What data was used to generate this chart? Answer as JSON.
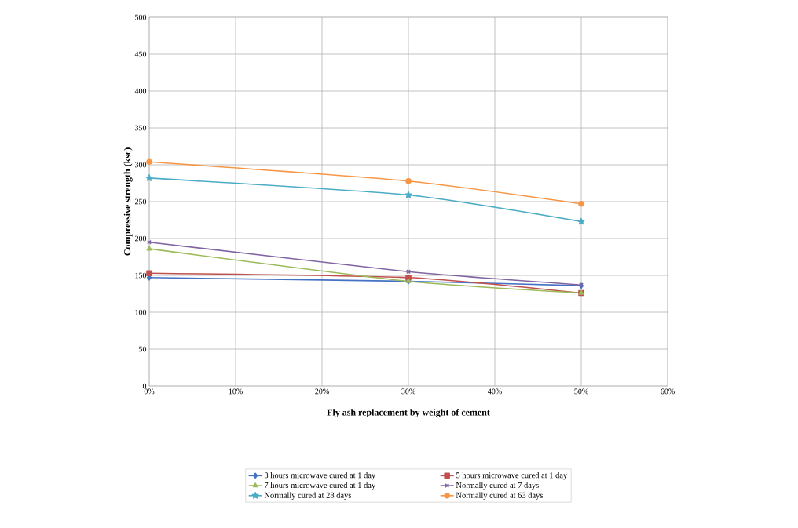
{
  "chart_data": {
    "type": "line",
    "xlabel": "Fly ash replacement by weight of cement",
    "ylabel": "Compressive strength (ksc)",
    "x": [
      0,
      30,
      50
    ],
    "series": [
      {
        "name": "3 hours microwave cured at 1 day",
        "color": "#4472c4",
        "marker": "diamond",
        "values": [
          147,
          142,
          136
        ]
      },
      {
        "name": "5 hours microwave cured at 1 day",
        "color": "#c0504d",
        "marker": "square",
        "values": [
          153,
          147,
          126
        ]
      },
      {
        "name": "7 hours microwave cured at 1 day",
        "color": "#9bbb59",
        "marker": "triangle",
        "values": [
          186,
          142,
          126
        ]
      },
      {
        "name": "Normally cured at 7 days",
        "color": "#8064a2",
        "marker": "cross",
        "values": [
          195,
          155,
          137
        ]
      },
      {
        "name": "Normally cured at 28 days",
        "color": "#4bacc6",
        "marker": "star",
        "values": [
          282,
          259,
          223
        ]
      },
      {
        "name": "Normally cured at 63 days",
        "color": "#f79646",
        "marker": "circle",
        "values": [
          304,
          278,
          247
        ]
      }
    ],
    "xlim": [
      0,
      60
    ],
    "xticks": [
      {
        "value": 0,
        "label": "0%"
      },
      {
        "value": 10,
        "label": "10%"
      },
      {
        "value": 20,
        "label": "20%"
      },
      {
        "value": 30,
        "label": "30%"
      },
      {
        "value": 40,
        "label": "40%"
      },
      {
        "value": 50,
        "label": "50%"
      },
      {
        "value": 60,
        "label": "60%"
      }
    ],
    "ylim": [
      0,
      500
    ],
    "yticks": [
      0,
      50,
      100,
      150,
      200,
      250,
      300,
      350,
      400,
      450,
      500
    ],
    "grid": true,
    "legend": "bottom",
    "line_style": "solid"
  }
}
